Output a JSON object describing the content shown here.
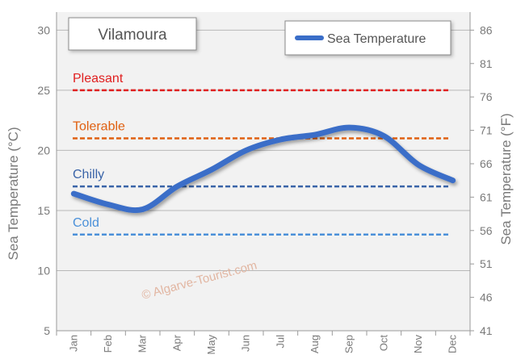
{
  "chart_data": {
    "type": "line",
    "title": "Vilamoura",
    "ylabel": "Sea Temperature (°C)",
    "y2label": "Sea Temperature (°F)",
    "categories": [
      "Jan",
      "Feb",
      "Mar",
      "Apr",
      "May",
      "Jun",
      "Jul",
      "Aug",
      "Sep",
      "Oct",
      "Nov",
      "Dec"
    ],
    "ylim": [
      5,
      31.5
    ],
    "y_ticks": [
      5,
      10,
      15,
      20,
      25,
      30
    ],
    "y2_ticks": [
      41,
      46,
      51,
      56,
      61,
      66,
      71,
      76,
      81,
      86
    ],
    "series": [
      {
        "name": "Sea Temperature",
        "values": [
          16.4,
          15.5,
          15.1,
          17.0,
          18.4,
          20.0,
          20.9,
          21.3,
          21.9,
          21.2,
          18.8,
          17.5
        ]
      }
    ],
    "reference_lines": [
      {
        "label": "Pleasant",
        "value": 25,
        "color": "#e02020"
      },
      {
        "label": "Tolerable",
        "value": 21,
        "color": "#e06010"
      },
      {
        "label": "Chilly",
        "value": 17,
        "color": "#3a64a8"
      },
      {
        "label": "Cold",
        "value": 13,
        "color": "#4a90d9"
      }
    ],
    "legend_position": "top-right",
    "watermark": "© Algarve-Tourist.com",
    "line_color": "#3a6ec8",
    "plot_bg": "#f2f2f2"
  }
}
